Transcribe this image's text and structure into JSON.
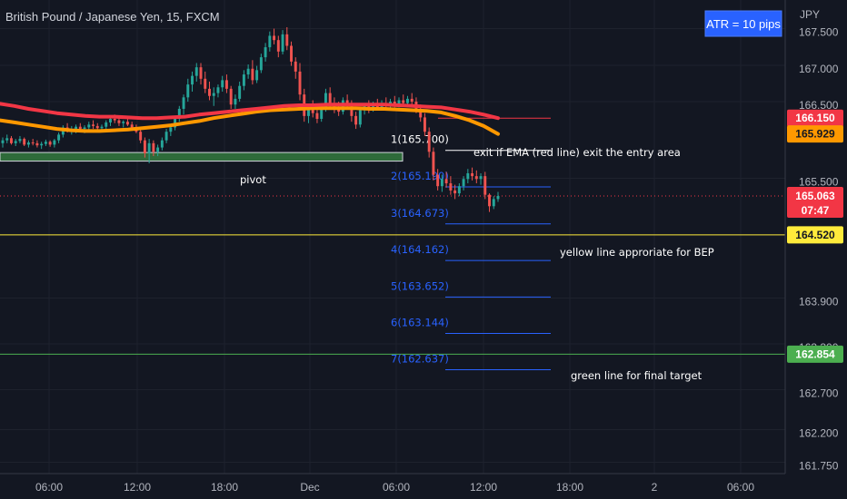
{
  "title": "British Pound / Japanese Yen, 15, FXCM",
  "currency": "JPY",
  "atr_label": "ATR = 10 pips",
  "chart_data": {
    "type": "candlestick",
    "ylim": [
      161.6,
      167.75
    ],
    "y_ticks": [
      "167.500",
      "167.000",
      "166.500",
      "165.500",
      "163.900",
      "163.300",
      "162.700",
      "162.200",
      "161.750"
    ],
    "x_ticks": [
      "06:00",
      "12:00",
      "18:00",
      "Dec",
      "06:00",
      "12:00",
      "18:00",
      "2",
      "06:00"
    ],
    "countdown": "07:47",
    "current_price": 165.063,
    "price_tags": [
      {
        "value": 166.15,
        "text": "166.150",
        "bg": "#f23645",
        "fg": "#ffffff"
      },
      {
        "value": 165.929,
        "text": "165.929",
        "bg": "#ff9800",
        "fg": "#131722"
      },
      {
        "value": 165.063,
        "text": "165.063",
        "bg": "#f23645",
        "fg": "#ffffff"
      },
      {
        "value": 164.52,
        "text": "164.520",
        "bg": "#ffeb3b",
        "fg": "#131722"
      },
      {
        "value": 162.854,
        "text": "162.854",
        "bg": "#4caf50",
        "fg": "#ffffff"
      }
    ],
    "horizontal_lines": [
      {
        "value": 164.52,
        "color": "#ffeb3b"
      },
      {
        "value": 162.854,
        "color": "#4caf50"
      }
    ],
    "levels": [
      {
        "label": "1(165.700)",
        "value": 165.7
      },
      {
        "label": "2(165.190)",
        "value": 165.19
      },
      {
        "label": "3(164.673)",
        "value": 164.673
      },
      {
        "label": "4(164.162)",
        "value": 164.162
      },
      {
        "label": "5(163.652)",
        "value": 163.652
      },
      {
        "label": "6(163.144)",
        "value": 163.144
      },
      {
        "label": "7(162.637)",
        "value": 162.637
      }
    ],
    "pivot": {
      "label": "pivot",
      "low": 165.55,
      "high": 165.67
    },
    "annotations": [
      "exit if EMA (red line) exit the entry area",
      "yellow line approriate for BEP",
      "green line for final target"
    ],
    "ema_slow": [
      166.35,
      166.32,
      166.28,
      166.25,
      166.22,
      166.2,
      166.18,
      166.17,
      166.17,
      166.16,
      166.15,
      166.15,
      166.16,
      166.17,
      166.2,
      166.22,
      166.24,
      166.26,
      166.28,
      166.3,
      166.32,
      166.33,
      166.33,
      166.34,
      166.34,
      166.34,
      166.34,
      166.34,
      166.33,
      166.32,
      166.31,
      166.3,
      166.27,
      166.24,
      166.2,
      166.15
    ],
    "ema_fast": [
      166.12,
      166.09,
      166.06,
      166.03,
      166.0,
      165.98,
      165.97,
      165.97,
      165.98,
      165.99,
      166.01,
      166.03,
      166.05,
      166.08,
      166.11,
      166.15,
      166.18,
      166.21,
      166.24,
      166.26,
      166.27,
      166.28,
      166.29,
      166.29,
      166.29,
      166.29,
      166.28,
      166.28,
      166.27,
      166.26,
      166.25,
      166.23,
      166.18,
      166.12,
      166.04,
      165.93
    ],
    "candles": [
      {
        "o": 165.8,
        "h": 165.88,
        "l": 165.74,
        "c": 165.84
      },
      {
        "o": 165.84,
        "h": 165.92,
        "l": 165.8,
        "c": 165.87
      },
      {
        "o": 165.87,
        "h": 165.9,
        "l": 165.78,
        "c": 165.8
      },
      {
        "o": 165.8,
        "h": 165.86,
        "l": 165.76,
        "c": 165.83
      },
      {
        "o": 165.83,
        "h": 165.9,
        "l": 165.8,
        "c": 165.86
      },
      {
        "o": 165.86,
        "h": 165.88,
        "l": 165.76,
        "c": 165.78
      },
      {
        "o": 165.78,
        "h": 165.84,
        "l": 165.74,
        "c": 165.81
      },
      {
        "o": 165.81,
        "h": 165.86,
        "l": 165.77,
        "c": 165.8
      },
      {
        "o": 165.8,
        "h": 165.84,
        "l": 165.74,
        "c": 165.77
      },
      {
        "o": 165.77,
        "h": 165.82,
        "l": 165.72,
        "c": 165.79
      },
      {
        "o": 165.79,
        "h": 165.85,
        "l": 165.76,
        "c": 165.82
      },
      {
        "o": 165.82,
        "h": 165.84,
        "l": 165.75,
        "c": 165.78
      },
      {
        "o": 165.78,
        "h": 165.86,
        "l": 165.74,
        "c": 165.84
      },
      {
        "o": 165.84,
        "h": 165.95,
        "l": 165.8,
        "c": 165.92
      },
      {
        "o": 165.92,
        "h": 166.05,
        "l": 165.88,
        "c": 166.02
      },
      {
        "o": 166.02,
        "h": 166.08,
        "l": 165.95,
        "c": 165.98
      },
      {
        "o": 165.98,
        "h": 166.04,
        "l": 165.92,
        "c": 166.0
      },
      {
        "o": 166.0,
        "h": 166.06,
        "l": 165.94,
        "c": 166.03
      },
      {
        "o": 166.03,
        "h": 166.08,
        "l": 165.96,
        "c": 166.0
      },
      {
        "o": 166.0,
        "h": 166.05,
        "l": 165.94,
        "c": 166.02
      },
      {
        "o": 166.02,
        "h": 166.1,
        "l": 165.98,
        "c": 166.06
      },
      {
        "o": 166.06,
        "h": 166.12,
        "l": 166.0,
        "c": 166.04
      },
      {
        "o": 166.04,
        "h": 166.08,
        "l": 165.98,
        "c": 166.01
      },
      {
        "o": 166.01,
        "h": 166.06,
        "l": 165.95,
        "c": 166.03
      },
      {
        "o": 166.03,
        "h": 166.12,
        "l": 166.0,
        "c": 166.09
      },
      {
        "o": 166.09,
        "h": 166.18,
        "l": 166.04,
        "c": 166.14
      },
      {
        "o": 166.14,
        "h": 166.2,
        "l": 166.08,
        "c": 166.12
      },
      {
        "o": 166.12,
        "h": 166.16,
        "l": 166.04,
        "c": 166.08
      },
      {
        "o": 166.08,
        "h": 166.12,
        "l": 166.02,
        "c": 166.1
      },
      {
        "o": 166.1,
        "h": 166.14,
        "l": 166.04,
        "c": 166.06
      },
      {
        "o": 166.06,
        "h": 166.1,
        "l": 165.98,
        "c": 166.02
      },
      {
        "o": 166.02,
        "h": 166.06,
        "l": 165.94,
        "c": 165.96
      },
      {
        "o": 165.96,
        "h": 166.0,
        "l": 165.8,
        "c": 165.84
      },
      {
        "o": 165.84,
        "h": 165.88,
        "l": 165.6,
        "c": 165.66
      },
      {
        "o": 165.66,
        "h": 165.86,
        "l": 165.52,
        "c": 165.8
      },
      {
        "o": 165.8,
        "h": 165.84,
        "l": 165.62,
        "c": 165.68
      },
      {
        "o": 165.68,
        "h": 165.78,
        "l": 165.62,
        "c": 165.74
      },
      {
        "o": 165.74,
        "h": 165.88,
        "l": 165.7,
        "c": 165.84
      },
      {
        "o": 165.84,
        "h": 166.0,
        "l": 165.8,
        "c": 165.96
      },
      {
        "o": 165.96,
        "h": 166.06,
        "l": 165.9,
        "c": 166.02
      },
      {
        "o": 166.02,
        "h": 166.18,
        "l": 165.98,
        "c": 166.14
      },
      {
        "o": 166.14,
        "h": 166.32,
        "l": 166.1,
        "c": 166.28
      },
      {
        "o": 166.28,
        "h": 166.48,
        "l": 166.2,
        "c": 166.44
      },
      {
        "o": 166.44,
        "h": 166.7,
        "l": 166.38,
        "c": 166.62
      },
      {
        "o": 166.62,
        "h": 166.8,
        "l": 166.52,
        "c": 166.74
      },
      {
        "o": 166.74,
        "h": 166.92,
        "l": 166.66,
        "c": 166.86
      },
      {
        "o": 166.86,
        "h": 166.92,
        "l": 166.62,
        "c": 166.7
      },
      {
        "o": 166.7,
        "h": 166.8,
        "l": 166.5,
        "c": 166.56
      },
      {
        "o": 166.56,
        "h": 166.66,
        "l": 166.4,
        "c": 166.46
      },
      {
        "o": 166.46,
        "h": 166.58,
        "l": 166.32,
        "c": 166.5
      },
      {
        "o": 166.5,
        "h": 166.62,
        "l": 166.44,
        "c": 166.58
      },
      {
        "o": 166.58,
        "h": 166.74,
        "l": 166.52,
        "c": 166.68
      },
      {
        "o": 166.68,
        "h": 166.76,
        "l": 166.5,
        "c": 166.56
      },
      {
        "o": 166.56,
        "h": 166.6,
        "l": 166.28,
        "c": 166.34
      },
      {
        "o": 166.34,
        "h": 166.48,
        "l": 166.28,
        "c": 166.42
      },
      {
        "o": 166.42,
        "h": 166.66,
        "l": 166.38,
        "c": 166.6
      },
      {
        "o": 166.6,
        "h": 166.82,
        "l": 166.54,
        "c": 166.76
      },
      {
        "o": 166.76,
        "h": 166.9,
        "l": 166.7,
        "c": 166.84
      },
      {
        "o": 166.84,
        "h": 166.96,
        "l": 166.62,
        "c": 166.68
      },
      {
        "o": 166.68,
        "h": 166.88,
        "l": 166.64,
        "c": 166.82
      },
      {
        "o": 166.82,
        "h": 167.05,
        "l": 166.78,
        "c": 167.0
      },
      {
        "o": 167.0,
        "h": 167.2,
        "l": 166.94,
        "c": 167.14
      },
      {
        "o": 167.14,
        "h": 167.36,
        "l": 167.08,
        "c": 167.3
      },
      {
        "o": 167.3,
        "h": 167.4,
        "l": 167.18,
        "c": 167.24
      },
      {
        "o": 167.24,
        "h": 167.3,
        "l": 167.0,
        "c": 167.08
      },
      {
        "o": 167.08,
        "h": 167.38,
        "l": 167.04,
        "c": 167.32
      },
      {
        "o": 167.32,
        "h": 167.42,
        "l": 167.1,
        "c": 167.16
      },
      {
        "o": 167.16,
        "h": 167.22,
        "l": 166.88,
        "c": 166.94
      },
      {
        "o": 166.94,
        "h": 167.0,
        "l": 166.7,
        "c": 166.8
      },
      {
        "o": 166.8,
        "h": 166.92,
        "l": 166.4,
        "c": 166.48
      },
      {
        "o": 166.48,
        "h": 166.56,
        "l": 166.1,
        "c": 166.18
      },
      {
        "o": 166.18,
        "h": 166.34,
        "l": 166.08,
        "c": 166.28
      },
      {
        "o": 166.28,
        "h": 166.4,
        "l": 166.16,
        "c": 166.22
      },
      {
        "o": 166.22,
        "h": 166.3,
        "l": 166.08,
        "c": 166.14
      },
      {
        "o": 166.14,
        "h": 166.36,
        "l": 166.1,
        "c": 166.3
      },
      {
        "o": 166.3,
        "h": 166.56,
        "l": 166.24,
        "c": 166.5
      },
      {
        "o": 166.5,
        "h": 166.58,
        "l": 166.3,
        "c": 166.36
      },
      {
        "o": 166.36,
        "h": 166.44,
        "l": 166.22,
        "c": 166.3
      },
      {
        "o": 166.3,
        "h": 166.38,
        "l": 166.18,
        "c": 166.24
      },
      {
        "o": 166.24,
        "h": 166.44,
        "l": 166.2,
        "c": 166.4
      },
      {
        "o": 166.4,
        "h": 166.48,
        "l": 166.28,
        "c": 166.34
      },
      {
        "o": 166.34,
        "h": 166.4,
        "l": 166.1,
        "c": 166.18
      },
      {
        "o": 166.18,
        "h": 166.24,
        "l": 166.0,
        "c": 166.06
      },
      {
        "o": 166.06,
        "h": 166.3,
        "l": 166.02,
        "c": 166.26
      },
      {
        "o": 166.26,
        "h": 166.36,
        "l": 166.2,
        "c": 166.32
      },
      {
        "o": 166.32,
        "h": 166.4,
        "l": 166.22,
        "c": 166.28
      },
      {
        "o": 166.28,
        "h": 166.38,
        "l": 166.24,
        "c": 166.34
      },
      {
        "o": 166.34,
        "h": 166.42,
        "l": 166.26,
        "c": 166.3
      },
      {
        "o": 166.3,
        "h": 166.4,
        "l": 166.26,
        "c": 166.36
      },
      {
        "o": 166.36,
        "h": 166.44,
        "l": 166.28,
        "c": 166.32
      },
      {
        "o": 166.32,
        "h": 166.42,
        "l": 166.28,
        "c": 166.38
      },
      {
        "o": 166.38,
        "h": 166.46,
        "l": 166.3,
        "c": 166.34
      },
      {
        "o": 166.34,
        "h": 166.44,
        "l": 166.3,
        "c": 166.4
      },
      {
        "o": 166.4,
        "h": 166.48,
        "l": 166.32,
        "c": 166.36
      },
      {
        "o": 166.36,
        "h": 166.46,
        "l": 166.3,
        "c": 166.42
      },
      {
        "o": 166.42,
        "h": 166.5,
        "l": 166.34,
        "c": 166.38
      },
      {
        "o": 166.38,
        "h": 166.44,
        "l": 166.22,
        "c": 166.28
      },
      {
        "o": 166.28,
        "h": 166.34,
        "l": 166.1,
        "c": 166.16
      },
      {
        "o": 166.16,
        "h": 166.22,
        "l": 165.9,
        "c": 165.96
      },
      {
        "o": 165.96,
        "h": 166.02,
        "l": 165.6,
        "c": 165.68
      },
      {
        "o": 165.68,
        "h": 165.74,
        "l": 165.28,
        "c": 165.36
      },
      {
        "o": 165.36,
        "h": 165.44,
        "l": 165.14,
        "c": 165.2
      },
      {
        "o": 165.2,
        "h": 165.36,
        "l": 165.12,
        "c": 165.3
      },
      {
        "o": 165.3,
        "h": 165.4,
        "l": 165.18,
        "c": 165.24
      },
      {
        "o": 165.24,
        "h": 165.34,
        "l": 165.08,
        "c": 165.14
      },
      {
        "o": 165.14,
        "h": 165.22,
        "l": 165.02,
        "c": 165.1
      },
      {
        "o": 165.1,
        "h": 165.24,
        "l": 165.06,
        "c": 165.2
      },
      {
        "o": 165.2,
        "h": 165.34,
        "l": 165.14,
        "c": 165.3
      },
      {
        "o": 165.3,
        "h": 165.44,
        "l": 165.24,
        "c": 165.38
      },
      {
        "o": 165.38,
        "h": 165.46,
        "l": 165.28,
        "c": 165.34
      },
      {
        "o": 165.34,
        "h": 165.42,
        "l": 165.24,
        "c": 165.3
      },
      {
        "o": 165.3,
        "h": 165.38,
        "l": 165.22,
        "c": 165.34
      },
      {
        "o": 165.34,
        "h": 165.4,
        "l": 165.02,
        "c": 165.08
      },
      {
        "o": 165.08,
        "h": 165.1,
        "l": 164.84,
        "c": 164.92
      },
      {
        "o": 164.92,
        "h": 165.06,
        "l": 164.88,
        "c": 165.02
      },
      {
        "o": 165.02,
        "h": 165.12,
        "l": 164.98,
        "c": 165.063
      }
    ]
  }
}
